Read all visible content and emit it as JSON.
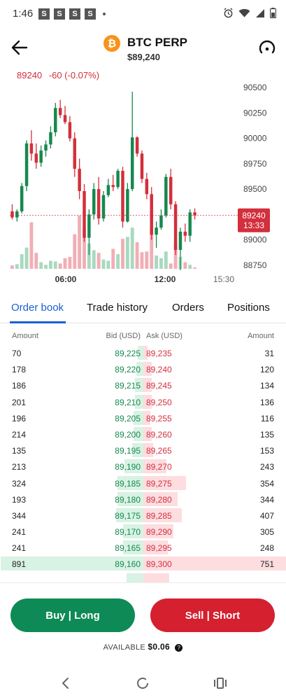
{
  "status_bar": {
    "time": "1:46",
    "notifications": [
      "S",
      "S",
      "S",
      "S"
    ],
    "icons": [
      "alarm-icon",
      "wifi-icon",
      "signal-icon",
      "battery-icon"
    ]
  },
  "header": {
    "coin_symbol": "₿",
    "title": "BTC PERP",
    "price": "$89,240"
  },
  "chart": {
    "last_price": "89240",
    "change": "-60 (-0.07%)",
    "price_tag": "89240",
    "countdown": "13:33",
    "y_ticks": [
      "90500",
      "90250",
      "90000",
      "89750",
      "89500",
      "89000",
      "88750"
    ],
    "x_ticks": [
      "06:00",
      "12:00",
      "15:30"
    ],
    "colors": {
      "up": "#15894e",
      "down": "#d32f3c",
      "up_volume": "#a8d9bf",
      "down_volume": "#f1aeb5"
    },
    "y_range": [
      88700,
      90550
    ]
  },
  "chart_data": {
    "type": "candlestick",
    "title": "",
    "xlabel": "",
    "ylabel": "",
    "ylim": [
      88700,
      90550
    ],
    "x_tick_labels": [
      "06:00",
      "12:00",
      "15:30"
    ],
    "candles": [
      {
        "o": 89280,
        "h": 89350,
        "l": 89200,
        "c": 89220,
        "v": 5
      },
      {
        "o": 89220,
        "h": 89300,
        "l": 89180,
        "c": 89280,
        "v": 7
      },
      {
        "o": 89280,
        "h": 89560,
        "l": 89260,
        "c": 89530,
        "v": 22
      },
      {
        "o": 89530,
        "h": 89980,
        "l": 89480,
        "c": 89950,
        "v": 32
      },
      {
        "o": 89950,
        "h": 90080,
        "l": 89780,
        "c": 89850,
        "v": 70
      },
      {
        "o": 89850,
        "h": 89950,
        "l": 89700,
        "c": 89760,
        "v": 24
      },
      {
        "o": 89760,
        "h": 89930,
        "l": 89720,
        "c": 89880,
        "v": 10
      },
      {
        "o": 89880,
        "h": 89980,
        "l": 89820,
        "c": 89940,
        "v": 6
      },
      {
        "o": 89940,
        "h": 90120,
        "l": 89900,
        "c": 90060,
        "v": 12
      },
      {
        "o": 90060,
        "h": 90350,
        "l": 90020,
        "c": 90300,
        "v": 11
      },
      {
        "o": 90300,
        "h": 90380,
        "l": 90200,
        "c": 90230,
        "v": 8
      },
      {
        "o": 90230,
        "h": 90320,
        "l": 90140,
        "c": 90160,
        "v": 16
      },
      {
        "o": 90160,
        "h": 90220,
        "l": 89970,
        "c": 90000,
        "v": 18
      },
      {
        "o": 90000,
        "h": 90060,
        "l": 89620,
        "c": 89700,
        "v": 52
      },
      {
        "o": 89700,
        "h": 89800,
        "l": 89400,
        "c": 89480,
        "v": 80
      },
      {
        "o": 89480,
        "h": 89550,
        "l": 88980,
        "c": 89020,
        "v": 60
      },
      {
        "o": 89020,
        "h": 89300,
        "l": 88850,
        "c": 89250,
        "v": 38
      },
      {
        "o": 89250,
        "h": 89560,
        "l": 89200,
        "c": 89500,
        "v": 28
      },
      {
        "o": 89500,
        "h": 89620,
        "l": 89150,
        "c": 89210,
        "v": 24
      },
      {
        "o": 89210,
        "h": 89480,
        "l": 89180,
        "c": 89440,
        "v": 14
      },
      {
        "o": 89440,
        "h": 89600,
        "l": 89420,
        "c": 89540,
        "v": 12
      },
      {
        "o": 89540,
        "h": 89640,
        "l": 89480,
        "c": 89520,
        "v": 30
      },
      {
        "o": 89520,
        "h": 89700,
        "l": 89500,
        "c": 89680,
        "v": 22
      },
      {
        "o": 89680,
        "h": 89720,
        "l": 89120,
        "c": 89180,
        "v": 45
      },
      {
        "o": 89180,
        "h": 89560,
        "l": 89170,
        "c": 89500,
        "v": 48
      },
      {
        "o": 89500,
        "h": 90460,
        "l": 89480,
        "c": 90010,
        "v": 62
      },
      {
        "o": 90010,
        "h": 90020,
        "l": 89820,
        "c": 89850,
        "v": 40
      },
      {
        "o": 89850,
        "h": 89880,
        "l": 89560,
        "c": 89600,
        "v": 25
      },
      {
        "o": 89600,
        "h": 89660,
        "l": 89400,
        "c": 89450,
        "v": 26
      },
      {
        "o": 89450,
        "h": 89520,
        "l": 89000,
        "c": 89050,
        "v": 58
      },
      {
        "o": 89050,
        "h": 89180,
        "l": 88920,
        "c": 89120,
        "v": 20
      },
      {
        "o": 89120,
        "h": 89300,
        "l": 89100,
        "c": 89240,
        "v": 16
      },
      {
        "o": 89240,
        "h": 89650,
        "l": 89220,
        "c": 89620,
        "v": 26
      },
      {
        "o": 89620,
        "h": 89700,
        "l": 89300,
        "c": 89350,
        "v": 8
      },
      {
        "o": 89350,
        "h": 89380,
        "l": 88850,
        "c": 88900,
        "v": 40
      },
      {
        "o": 88900,
        "h": 89120,
        "l": 88700,
        "c": 89080,
        "v": 18
      },
      {
        "o": 89080,
        "h": 89160,
        "l": 88980,
        "c": 89040,
        "v": 10
      },
      {
        "o": 89040,
        "h": 89300,
        "l": 88980,
        "c": 89270,
        "v": 6
      },
      {
        "o": 89270,
        "h": 89310,
        "l": 89200,
        "c": 89240,
        "v": 2
      }
    ]
  },
  "tabs": [
    {
      "label": "Order book",
      "active": true
    },
    {
      "label": "Trade history",
      "active": false
    },
    {
      "label": "Orders",
      "active": false
    },
    {
      "label": "Positions",
      "active": false
    }
  ],
  "order_book": {
    "headers": {
      "amount_left": "Amount",
      "bid": "Bid (USD)",
      "ask": "Ask (USD)",
      "amount_right": "Amount"
    },
    "rows": [
      {
        "bid_amt": "70",
        "bid": "89,225",
        "ask": "89,235",
        "ask_amt": "31"
      },
      {
        "bid_amt": "178",
        "bid": "89,220",
        "ask": "89,240",
        "ask_amt": "120"
      },
      {
        "bid_amt": "186",
        "bid": "89,215",
        "ask": "89,245",
        "ask_amt": "134"
      },
      {
        "bid_amt": "201",
        "bid": "89,210",
        "ask": "89,250",
        "ask_amt": "136"
      },
      {
        "bid_amt": "196",
        "bid": "89,205",
        "ask": "89,255",
        "ask_amt": "116"
      },
      {
        "bid_amt": "214",
        "bid": "89,200",
        "ask": "89,260",
        "ask_amt": "135"
      },
      {
        "bid_amt": "135",
        "bid": "89,195",
        "ask": "89,265",
        "ask_amt": "153"
      },
      {
        "bid_amt": "213",
        "bid": "89,190",
        "ask": "89,270",
        "ask_amt": "243"
      },
      {
        "bid_amt": "324",
        "bid": "89,185",
        "ask": "89,275",
        "ask_amt": "354"
      },
      {
        "bid_amt": "193",
        "bid": "89,180",
        "ask": "89,280",
        "ask_amt": "344"
      },
      {
        "bid_amt": "344",
        "bid": "89,175",
        "ask": "89,285",
        "ask_amt": "407"
      },
      {
        "bid_amt": "241",
        "bid": "89,170",
        "ask": "89,290",
        "ask_amt": "305"
      },
      {
        "bid_amt": "241",
        "bid": "89,165",
        "ask": "89,295",
        "ask_amt": "248"
      },
      {
        "bid_amt": "891",
        "bid": "89,160",
        "ask": "89,300",
        "ask_amt": "751"
      },
      {
        "bid_amt": "",
        "bid": "",
        "ask": "",
        "ask_amt": ""
      }
    ],
    "depth_bid": [
      0.04,
      0.05,
      0.06,
      0.06,
      0.07,
      0.07,
      0.08,
      0.13,
      0.18,
      0.18,
      0.19,
      0.14,
      0.14,
      1.0,
      0.12
    ],
    "depth_ask": [
      0.03,
      0.06,
      0.06,
      0.06,
      0.05,
      0.06,
      0.07,
      0.16,
      0.3,
      0.24,
      0.27,
      0.21,
      0.17,
      1.0,
      0.18
    ]
  },
  "actions": {
    "buy_label": "Buy | Long",
    "sell_label": "Sell | Short",
    "available_label": "AVAILABLE",
    "available_value": "$0.06",
    "help_symbol": "?"
  },
  "nav": {
    "back": "back-icon",
    "home": "home-icon",
    "recents": "recents-icon"
  }
}
